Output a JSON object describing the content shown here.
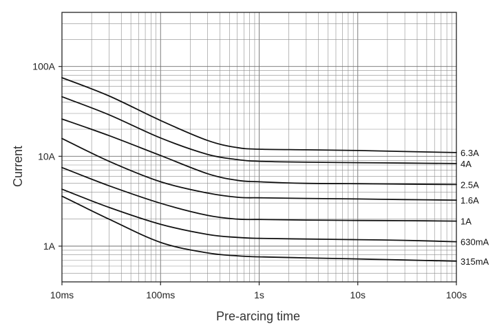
{
  "chart_data": {
    "type": "line",
    "title": "",
    "xlabel": "Pre-arcing time",
    "ylabel": "Current",
    "x_scale": "log",
    "y_scale": "log",
    "x_unit": "s",
    "y_unit": "A",
    "xlim": [
      0.01,
      100
    ],
    "ylim": [
      0.4,
      400
    ],
    "grid": true,
    "legend": "inline-right",
    "x_ticks": [
      {
        "value": 0.01,
        "label": "10ms"
      },
      {
        "value": 0.1,
        "label": "100ms"
      },
      {
        "value": 1,
        "label": "1s"
      },
      {
        "value": 10,
        "label": "10s"
      },
      {
        "value": 100,
        "label": "100s"
      }
    ],
    "y_ticks": [
      {
        "value": 1,
        "label": "1A"
      },
      {
        "value": 10,
        "label": "10A"
      },
      {
        "value": 100,
        "label": "100A"
      }
    ],
    "series": [
      {
        "name": "6.3A",
        "x": [
          0.01,
          0.03,
          0.1,
          0.3,
          0.6,
          1,
          3,
          10,
          30,
          100
        ],
        "y": [
          75,
          47,
          25,
          15,
          12.5,
          12,
          11.8,
          11.6,
          11.3,
          11.0
        ]
      },
      {
        "name": "4A",
        "x": [
          0.01,
          0.03,
          0.1,
          0.3,
          0.6,
          1,
          3,
          10,
          30,
          100
        ],
        "y": [
          46,
          29,
          16,
          10.5,
          9.2,
          8.8,
          8.6,
          8.5,
          8.4,
          8.3
        ]
      },
      {
        "name": "2.5A",
        "x": [
          0.01,
          0.03,
          0.1,
          0.3,
          0.6,
          1,
          3,
          10,
          30,
          100
        ],
        "y": [
          26,
          17,
          10.2,
          6.4,
          5.4,
          5.2,
          5.0,
          4.95,
          4.9,
          4.85
        ]
      },
      {
        "name": "1.6A",
        "x": [
          0.01,
          0.03,
          0.1,
          0.3,
          0.6,
          1,
          3,
          10,
          30,
          100
        ],
        "y": [
          15.8,
          8.8,
          5.2,
          3.9,
          3.5,
          3.45,
          3.4,
          3.35,
          3.3,
          3.25
        ]
      },
      {
        "name": "1A",
        "x": [
          0.01,
          0.03,
          0.1,
          0.3,
          0.6,
          1,
          3,
          10,
          30,
          100
        ],
        "y": [
          7.5,
          4.7,
          3.0,
          2.2,
          2.0,
          1.98,
          1.95,
          1.93,
          1.92,
          1.9
        ]
      },
      {
        "name": "630mA",
        "x": [
          0.01,
          0.03,
          0.1,
          0.3,
          0.6,
          1,
          3,
          10,
          30,
          100
        ],
        "y": [
          4.3,
          2.7,
          1.75,
          1.35,
          1.25,
          1.22,
          1.2,
          1.18,
          1.16,
          1.12
        ]
      },
      {
        "name": "315mA",
        "x": [
          0.01,
          0.03,
          0.1,
          0.3,
          0.6,
          1,
          3,
          10,
          30,
          100
        ],
        "y": [
          3.6,
          2.0,
          1.1,
          0.84,
          0.78,
          0.76,
          0.74,
          0.72,
          0.7,
          0.68
        ]
      }
    ]
  }
}
